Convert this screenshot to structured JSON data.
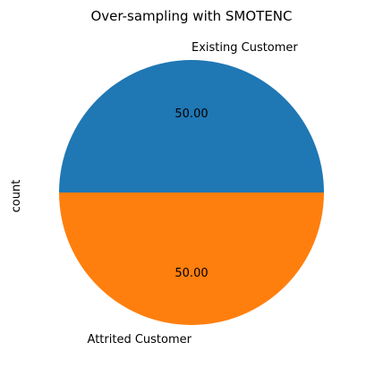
{
  "chart_data": {
    "type": "pie",
    "title": "Over-sampling with SMOTENC",
    "ylabel": "count",
    "categories": [
      "Existing Customer",
      "Attrited Customer"
    ],
    "values": [
      50.0,
      50.0
    ],
    "value_labels": [
      "50.00",
      "50.00"
    ],
    "colors": [
      "#1f77b4",
      "#ff7f0e"
    ],
    "start_angle_deg": 0,
    "direction": "counterclockwise"
  }
}
